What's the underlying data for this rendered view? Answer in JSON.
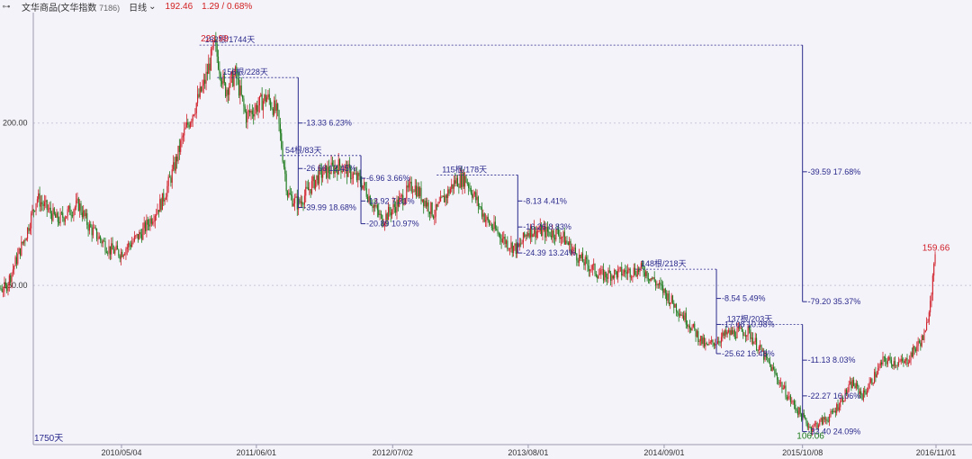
{
  "header": {
    "icon": "link-icon",
    "name": "文华商品(文华指数",
    "code": "7186)",
    "period": "日线",
    "period_arrow": "chevron-down-icon",
    "price": "192.46",
    "change": "1.29 / 0.68%"
  },
  "colors": {
    "background": "#f5f3fa",
    "up": "#d0202a",
    "down": "#1c7a1c",
    "annotation": "#2a2a8c",
    "grid": "#c8c8d8"
  },
  "chart_data": {
    "type": "candlestick",
    "title": "",
    "ylim": [
      101,
      234
    ],
    "y_ticks": [
      200.0,
      150.0
    ],
    "x_ticks": [
      "2010/05/04",
      "2011/06/01",
      "2012/07/02",
      "2013/08/01",
      "2014/09/01",
      "2015/10/08",
      "2016/11/01"
    ],
    "bars_label": "1750天",
    "grid": "horizontal dashed",
    "close_path": [
      [
        "2009/03",
        150
      ],
      [
        "2009/06",
        149
      ],
      [
        "2009/08",
        166
      ],
      [
        "2009/09",
        177
      ],
      [
        "2009/11",
        170
      ],
      [
        "2010/01",
        175
      ],
      [
        "2010/02",
        168
      ],
      [
        "2010/04",
        161
      ],
      [
        "2010/05",
        160
      ],
      [
        "2010/07",
        166
      ],
      [
        "2010/09",
        176
      ],
      [
        "2010/10",
        185
      ],
      [
        "2010/11",
        196
      ],
      [
        "2011/01",
        212
      ],
      [
        "2011/02",
        223.98
      ],
      [
        "2011/03",
        210
      ],
      [
        "2011/04",
        215
      ],
      [
        "2011/05",
        202
      ],
      [
        "2011/07",
        208
      ],
      [
        "2011/08",
        203
      ],
      [
        "2011/09",
        178
      ],
      [
        "2011/10",
        175
      ],
      [
        "2011/12",
        184
      ],
      [
        "2012/02",
        187
      ],
      [
        "2012/04",
        182
      ],
      [
        "2012/06",
        170
      ],
      [
        "2012/08",
        177
      ],
      [
        "2012/09",
        181
      ],
      [
        "2012/11",
        172
      ],
      [
        "2013/01",
        182
      ],
      [
        "2013/02",
        183
      ],
      [
        "2013/04",
        170
      ],
      [
        "2013/06",
        163
      ],
      [
        "2013/07",
        161
      ],
      [
        "2013/08",
        167
      ],
      [
        "2013/11",
        166
      ],
      [
        "2014/01",
        158
      ],
      [
        "2014/03",
        153
      ],
      [
        "2014/05",
        154
      ],
      [
        "2014/07",
        155
      ],
      [
        "2014/09",
        148
      ],
      [
        "2014/11",
        140
      ],
      [
        "2015/01",
        131
      ],
      [
        "2015/03",
        135
      ],
      [
        "2015/05",
        136
      ],
      [
        "2015/07",
        126
      ],
      [
        "2015/09",
        115
      ],
      [
        "2015/11",
        106.06
      ],
      [
        "2016/01",
        110
      ],
      [
        "2016/03",
        120
      ],
      [
        "2016/04",
        116
      ],
      [
        "2016/06",
        127
      ],
      [
        "2016/08",
        126
      ],
      [
        "2016/10",
        135
      ],
      [
        "2016/11",
        159.66
      ]
    ],
    "extremes": [
      {
        "label": "223.98",
        "date": "2011/02",
        "value": 223.98,
        "kind": "high"
      },
      {
        "label": "159.66",
        "date": "2016/11",
        "value": 159.66,
        "kind": "high"
      },
      {
        "label": "106.06",
        "date": "2015/11",
        "value": 106.06,
        "kind": "low"
      }
    ],
    "measurements": [
      {
        "header": "162根/1744天",
        "level": 223.98,
        "x_date": "2015/10/08",
        "labels": [
          {
            "text": "-39.59  17.68%",
            "value": 185
          },
          {
            "text": "-79.20  35.37%",
            "value": 145
          }
        ]
      },
      {
        "header": "156根/228天",
        "level": 214,
        "x_date": "2011/10",
        "labels": [
          {
            "text": "-13.33  6.23%",
            "value": 200
          },
          {
            "text": "-26.66  12.45%",
            "value": 186
          },
          {
            "text": "-39.99  18.68%",
            "value": 174
          }
        ]
      },
      {
        "header": "54根/83天",
        "level": 190,
        "x_date": "2012/04",
        "labels": [
          {
            "text": "-6.96  3.66%",
            "value": 183
          },
          {
            "text": "-13.92  7.31%",
            "value": 176
          },
          {
            "text": "-20.89  10.97%",
            "value": 169
          }
        ]
      },
      {
        "header": "115根/178天",
        "level": 184,
        "x_date": "2013/07",
        "labels": [
          {
            "text": "-8.13  4.41%",
            "value": 176
          },
          {
            "text": "-16.26  8.83%",
            "value": 168
          },
          {
            "text": "-24.39  13.24%",
            "value": 160
          }
        ]
      },
      {
        "header": "148根/218天",
        "level": 155,
        "x_date": "2015/02",
        "labels": [
          {
            "text": "-8.54  5.49%",
            "value": 146
          },
          {
            "text": "-17.08  10.98%",
            "value": 138
          },
          {
            "text": "-25.62  16.48%",
            "value": 129
          }
        ]
      },
      {
        "header": "137根/203天",
        "level": 138,
        "x_date": "2015/10/08",
        "labels": [
          {
            "text": "-11.13  8.03%",
            "value": 127
          },
          {
            "text": "-22.27  16.06%",
            "value": 116
          },
          {
            "text": "-33.40  24.09%",
            "value": 105
          }
        ]
      }
    ]
  }
}
